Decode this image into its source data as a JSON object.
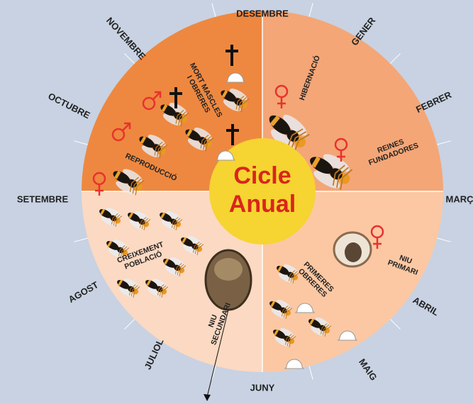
{
  "center": {
    "line1": "Cicle",
    "line2": "Anual"
  },
  "months": [
    "DESEMBRE",
    "GENER",
    "FEBRER",
    "MARÇ",
    "ABRIL",
    "MAIG",
    "JUNY",
    "JULIOL",
    "AGOST",
    "SETEMBRE",
    "OCTUBRE",
    "NOVEMBRE"
  ],
  "phases": [
    {
      "lines": [
        "MORT MASCLES",
        "I OBRERES"
      ]
    },
    {
      "lines": [
        "HIBERNACIÓ"
      ]
    },
    {
      "lines": [
        "REINES",
        "FUNDADORES"
      ]
    },
    {
      "lines": [
        "REPRODUCCIÓ"
      ]
    },
    {
      "lines": [
        "NIU",
        "PRIMARI"
      ]
    },
    {
      "lines": [
        "PRIMERES",
        "OBRERES"
      ]
    },
    {
      "lines": [
        "CREIXEMENT",
        "POBLACIÓ"
      ]
    },
    {
      "lines": [
        "NIU",
        "SECUNDARI"
      ]
    }
  ]
}
